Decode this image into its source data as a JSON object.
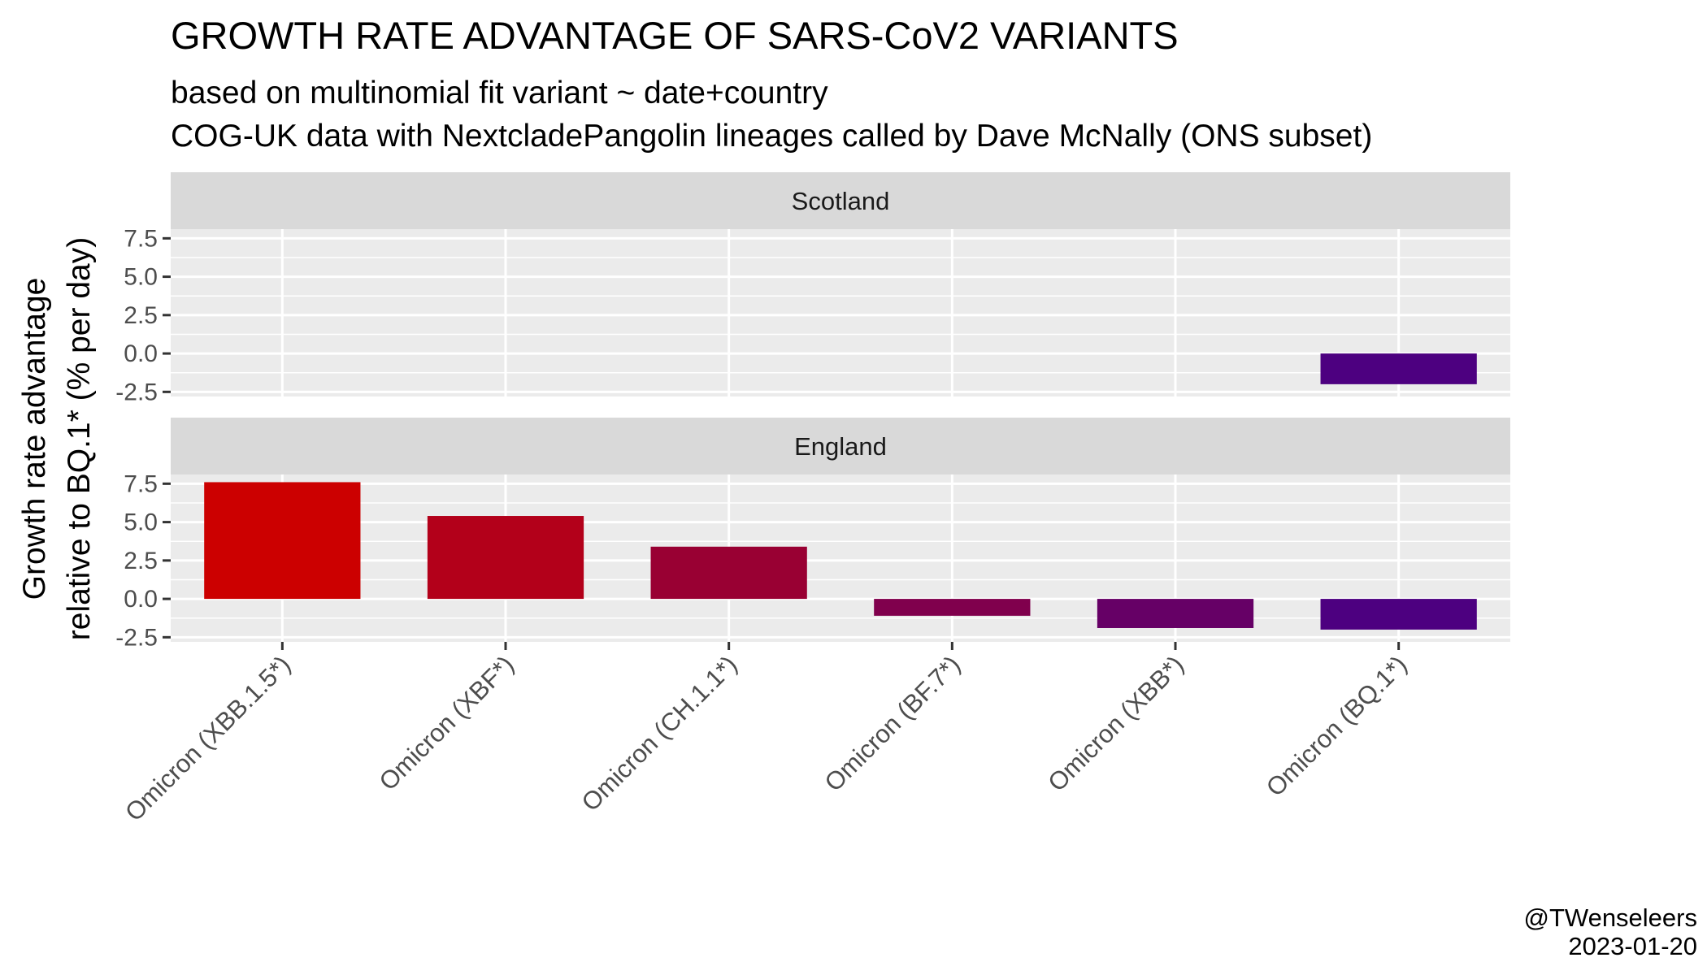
{
  "chart_data": {
    "type": "bar",
    "title": "GROWTH RATE ADVANTAGE OF SARS-CoV2 VARIANTS",
    "subtitle_lines": [
      "based on multinomial fit variant ~ date+country",
      "COG-UK data with NextcladePangolin lineages called by Dave McNally (ONS subset)"
    ],
    "ylabel_lines": [
      "Growth rate advantage",
      "relative to BQ.1* (% per day)"
    ],
    "xlabel": "",
    "categories": [
      "Omicron (XBB.1.5*)",
      "Omicron (XBF*)",
      "Omicron (CH.1.1*)",
      "Omicron (BF.7*)",
      "Omicron (XBB*)",
      "Omicron (BQ.1*)"
    ],
    "colors": [
      "#CC0000",
      "#B3001A",
      "#990033",
      "#80004D",
      "#660066",
      "#4D0080"
    ],
    "yticks": [
      7.5,
      5.0,
      2.5,
      0.0,
      -2.5
    ],
    "ytick_labels": [
      "7.5",
      "5.0",
      "2.5",
      "0.0",
      "-2.5"
    ],
    "ylim": [
      -2.8,
      8.1
    ],
    "panels": [
      {
        "name": "Scotland",
        "values": [
          null,
          null,
          null,
          null,
          null,
          -2.0
        ]
      },
      {
        "name": "England",
        "values": [
          7.6,
          5.4,
          3.4,
          -1.1,
          -1.9,
          -2.0
        ]
      }
    ],
    "caption_lines": [
      "@TWenseleers",
      "2023-01-20"
    ],
    "panel_background": "#EBEBEB",
    "strip_background": "#D9D9D9",
    "grid_color": "#FFFFFF"
  }
}
